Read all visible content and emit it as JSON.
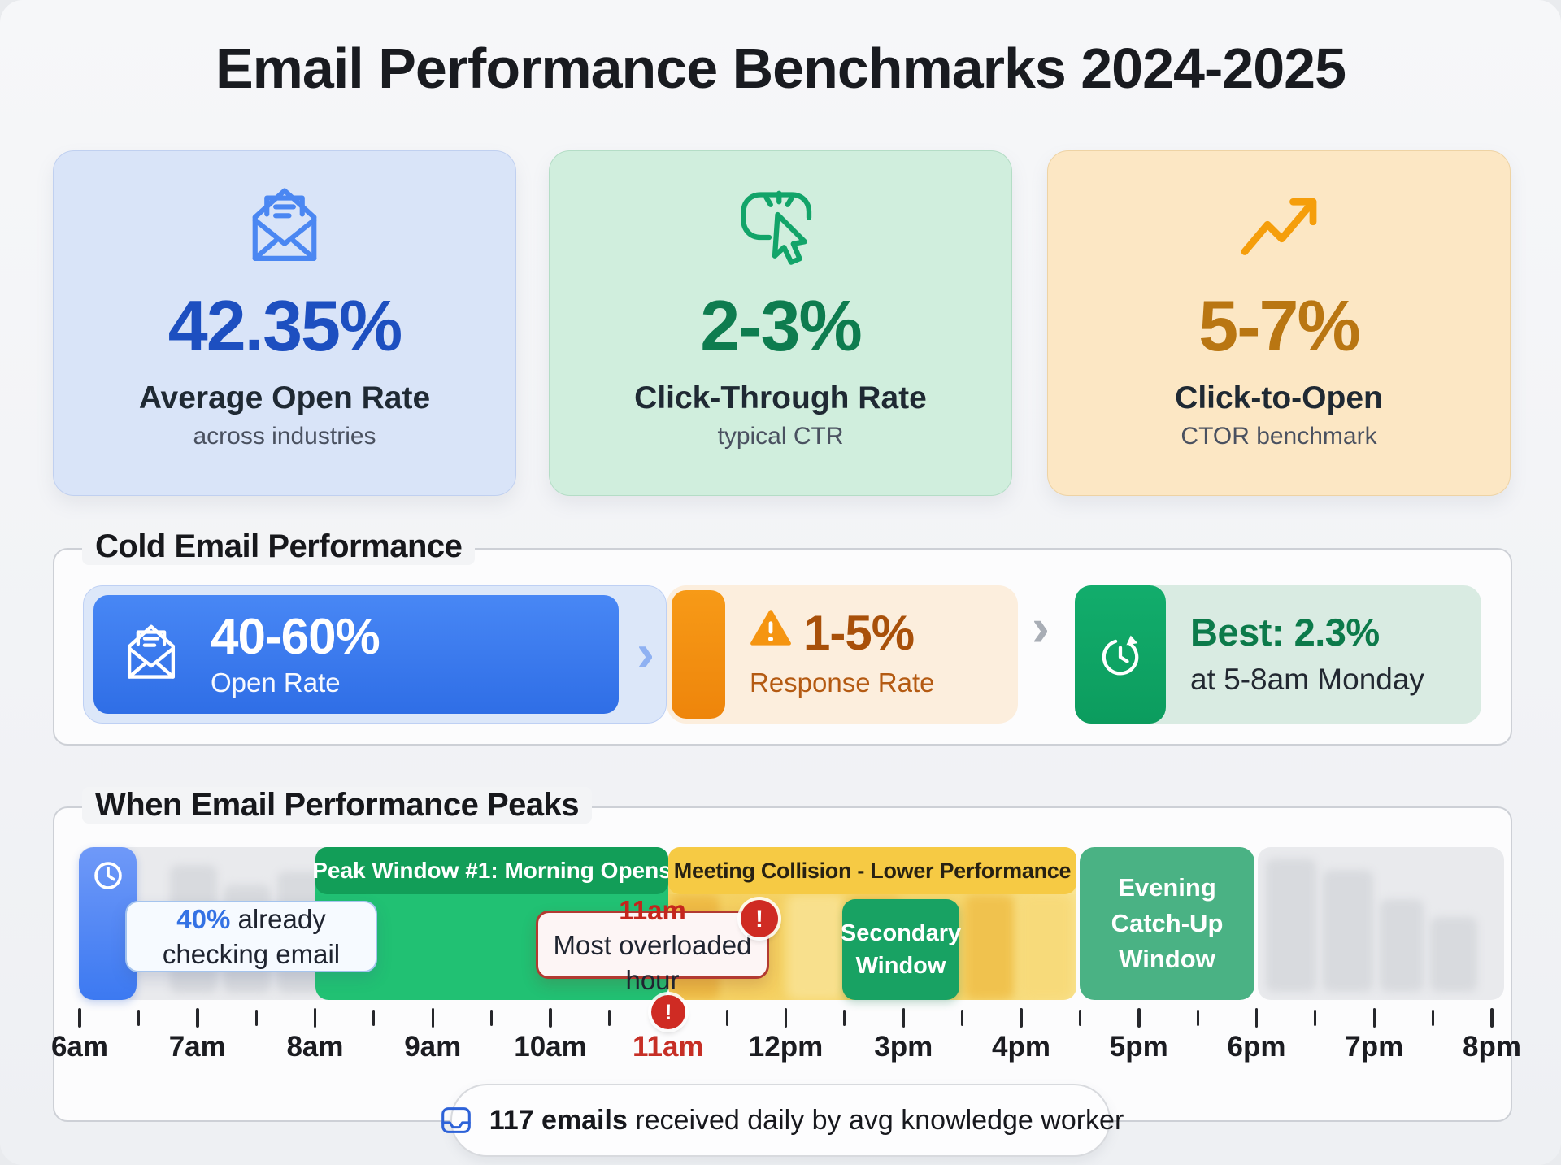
{
  "title": "Email Performance Benchmarks 2024-2025",
  "stat_cards": [
    {
      "icon": "open-envelope-icon",
      "value": "42.35%",
      "label": "Average Open Rate",
      "sub": "across industries",
      "accent": "#1d4fc0",
      "bg": "#d9e4f8"
    },
    {
      "icon": "cursor-click-icon",
      "value": "2-3%",
      "label": "Click-Through Rate",
      "sub": "typical CTR",
      "accent": "#0e7c4f",
      "bg": "#d0eedd"
    },
    {
      "icon": "trending-up-icon",
      "value": "5-7%",
      "label": "Click-to-Open",
      "sub": "CTOR benchmark",
      "accent": "#b97612",
      "bg": "#fce7c4"
    }
  ],
  "cold_email": {
    "section_title": "Cold Email Performance",
    "steps": [
      {
        "icon": "open-envelope-icon",
        "value": "40-60%",
        "label": "Open Rate",
        "color": "#3d7cf0"
      },
      {
        "icon": "warning-icon",
        "value": "1-5%",
        "label": "Response Rate",
        "color": "#ee850b"
      },
      {
        "icon": "clock-refresh-icon",
        "value": "Best: 2.3%",
        "label": "at 5-8am Monday",
        "color": "#0fa568"
      }
    ]
  },
  "peaks": {
    "section_title": "When Email Performance Peaks",
    "callout_morning": {
      "highlight": "40%",
      "rest": " already",
      "line2": "checking email"
    },
    "windows": {
      "peak1": {
        "label": "Peak Window #1: Morning Opens",
        "from": "8am",
        "to": "11am",
        "color": "#21c173"
      },
      "collision": {
        "label": "Meeting Collision - Lower Performance",
        "from": "11am",
        "to": "4pm",
        "color": "#f6ca44"
      },
      "secondary": {
        "line1": "Secondary",
        "line2": "Window",
        "near": "3pm",
        "color": "#18a263"
      },
      "evening": {
        "line1": "Evening",
        "line2": "Catch-Up",
        "line3": "Window",
        "from": "5pm",
        "to": "6pm",
        "color": "#4ab284"
      }
    },
    "callout_overload": {
      "time": "11am",
      "text": "Most overloaded hour"
    },
    "axis_labels": [
      "6am",
      "7am",
      "8am",
      "9am",
      "10am",
      "11am",
      "12pm",
      "3pm",
      "4pm",
      "5pm",
      "6pm",
      "7pm",
      "8pm"
    ],
    "highlight_hour": "11am",
    "footer": {
      "bold": "117 emails",
      "rest": " received daily by avg knowledge worker"
    }
  },
  "colors": {
    "accent_blue": "#3d7cf0",
    "accent_green": "#14a45c",
    "accent_orange": "#f59e0b",
    "alert_red": "#cf2b23"
  }
}
